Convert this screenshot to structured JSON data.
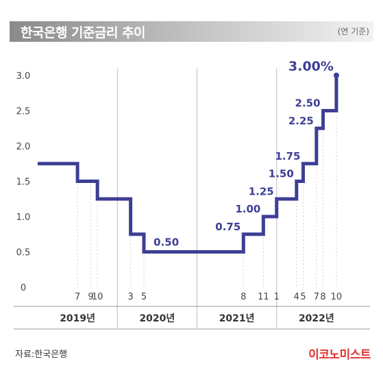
{
  "header": {
    "title": "한국은행 기준금리 추이",
    "unit_note": "(연 기준)"
  },
  "footer": {
    "source": "자료:한국은행",
    "logo": "이코노미스트"
  },
  "colors": {
    "line": "#3d3f95",
    "grid": "#cfcfcf",
    "title_bg": "#9a9a9a",
    "logo": "#e0302f"
  },
  "chart_data": {
    "type": "line",
    "step": true,
    "title": "한국은행 기준금리 추이",
    "ylim": [
      0,
      3.0
    ],
    "y_ticks": [
      "0",
      "0.5",
      "1.0",
      "1.5",
      "2.0",
      "2.5",
      "3.0"
    ],
    "x_range": [
      "2019-01",
      "2023-01"
    ],
    "year_labels": [
      "2019년",
      "2020년",
      "2021년",
      "2022년"
    ],
    "month_ticks": [
      {
        "date": "2019-07",
        "label": "7"
      },
      {
        "date": "2019-09",
        "label": "9"
      },
      {
        "date": "2019-10",
        "label": "10"
      },
      {
        "date": "2020-03",
        "label": "3"
      },
      {
        "date": "2020-05",
        "label": "5"
      },
      {
        "date": "2021-08",
        "label": "8"
      },
      {
        "date": "2021-11",
        "label": "11"
      },
      {
        "date": "2022-01",
        "label": "1"
      },
      {
        "date": "2022-04",
        "label": "4"
      },
      {
        "date": "2022-05",
        "label": "5"
      },
      {
        "date": "2022-07",
        "label": "7"
      },
      {
        "date": "2022-08",
        "label": "8"
      },
      {
        "date": "2022-10",
        "label": "10"
      }
    ],
    "points": [
      {
        "date": "2019-01",
        "value": 1.75,
        "label": ""
      },
      {
        "date": "2019-07",
        "value": 1.5,
        "label": ""
      },
      {
        "date": "2019-10",
        "value": 1.25,
        "label": ""
      },
      {
        "date": "2020-03",
        "value": 0.75,
        "label": ""
      },
      {
        "date": "2020-05",
        "value": 0.5,
        "label": "0.50"
      },
      {
        "date": "2021-08",
        "value": 0.75,
        "label": "0.75"
      },
      {
        "date": "2021-11",
        "value": 1.0,
        "label": "1.00"
      },
      {
        "date": "2022-01",
        "value": 1.25,
        "label": "1.25"
      },
      {
        "date": "2022-04",
        "value": 1.5,
        "label": "1.50"
      },
      {
        "date": "2022-05",
        "value": 1.75,
        "label": "1.75"
      },
      {
        "date": "2022-07",
        "value": 2.25,
        "label": "2.25"
      },
      {
        "date": "2022-08",
        "value": 2.5,
        "label": "2.50"
      },
      {
        "date": "2022-10",
        "value": 3.0,
        "label": "3.00%"
      }
    ],
    "grid": true
  }
}
